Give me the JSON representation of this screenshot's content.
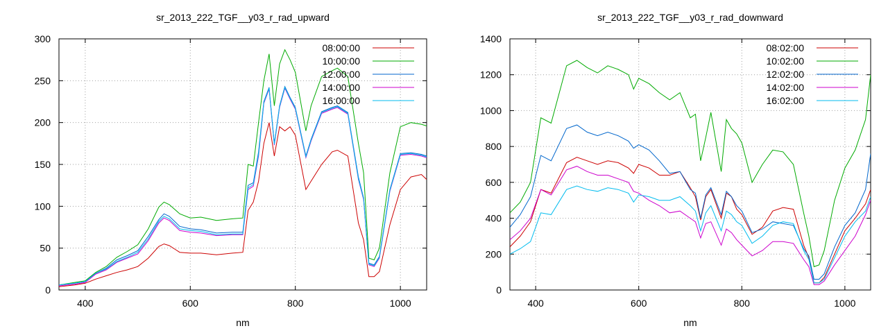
{
  "chart_data": [
    {
      "type": "line",
      "title": "sr_2013_222_TGF__y03_r_rad_upward",
      "xlabel": "nm",
      "ylabel": "",
      "xlim": [
        350,
        1050
      ],
      "ylim": [
        0,
        300
      ],
      "xticks": [
        400,
        600,
        800,
        1000
      ],
      "yticks": [
        0,
        50,
        100,
        150,
        200,
        250,
        300
      ],
      "grid": true,
      "legend": "top-right",
      "series": [
        {
          "name": "08:00:00",
          "color": "#cc0000",
          "x": [
            350,
            380,
            400,
            420,
            440,
            460,
            480,
            500,
            520,
            540,
            550,
            560,
            580,
            600,
            620,
            650,
            680,
            700,
            710,
            720,
            730,
            740,
            750,
            760,
            770,
            780,
            790,
            800,
            820,
            830,
            850,
            870,
            880,
            900,
            920,
            930,
            940,
            950,
            960,
            980,
            1000,
            1020,
            1040,
            1050
          ],
          "y": [
            4,
            6,
            8,
            13,
            17,
            21,
            24,
            28,
            38,
            52,
            55,
            53,
            45,
            44,
            44,
            42,
            44,
            45,
            95,
            105,
            130,
            175,
            200,
            160,
            195,
            190,
            195,
            185,
            120,
            130,
            150,
            165,
            167,
            160,
            80,
            60,
            16,
            16,
            22,
            78,
            120,
            135,
            138,
            132
          ]
        },
        {
          "name": "10:00:00",
          "color": "#00aa00",
          "x": [
            350,
            380,
            400,
            420,
            440,
            460,
            480,
            500,
            520,
            540,
            550,
            560,
            580,
            600,
            620,
            650,
            680,
            700,
            710,
            720,
            730,
            740,
            750,
            760,
            770,
            780,
            790,
            800,
            820,
            830,
            850,
            870,
            880,
            900,
            920,
            930,
            940,
            950,
            960,
            980,
            1000,
            1020,
            1040,
            1050
          ],
          "y": [
            6,
            9,
            11,
            21,
            28,
            39,
            46,
            54,
            73,
            99,
            105,
            102,
            91,
            86,
            87,
            83,
            85,
            86,
            150,
            148,
            200,
            250,
            282,
            220,
            270,
            287,
            275,
            260,
            190,
            220,
            255,
            262,
            265,
            255,
            175,
            140,
            38,
            36,
            50,
            140,
            195,
            200,
            198,
            196
          ]
        },
        {
          "name": "12:00:00",
          "color": "#0066cc",
          "x": [
            350,
            380,
            400,
            420,
            440,
            460,
            480,
            500,
            520,
            540,
            550,
            560,
            580,
            600,
            620,
            650,
            680,
            700,
            710,
            720,
            730,
            740,
            750,
            760,
            770,
            780,
            790,
            800,
            820,
            830,
            850,
            870,
            880,
            900,
            920,
            930,
            940,
            950,
            960,
            980,
            1000,
            1020,
            1040,
            1050
          ],
          "y": [
            6,
            8,
            10,
            20,
            26,
            36,
            41,
            47,
            64,
            84,
            91,
            88,
            76,
            73,
            72,
            68,
            69,
            69,
            125,
            128,
            165,
            225,
            242,
            175,
            220,
            243,
            230,
            218,
            160,
            180,
            213,
            218,
            220,
            212,
            135,
            110,
            32,
            30,
            40,
            120,
            163,
            164,
            162,
            160
          ]
        },
        {
          "name": "14:00:00",
          "color": "#cc00cc",
          "x": [
            350,
            380,
            400,
            420,
            440,
            460,
            480,
            500,
            520,
            540,
            550,
            560,
            580,
            600,
            620,
            650,
            680,
            700,
            710,
            720,
            730,
            740,
            750,
            760,
            770,
            780,
            790,
            800,
            820,
            830,
            850,
            870,
            880,
            900,
            920,
            930,
            940,
            950,
            960,
            980,
            1000,
            1020,
            1040,
            1050
          ],
          "y": [
            5,
            7,
            9,
            19,
            24,
            33,
            38,
            43,
            59,
            80,
            86,
            83,
            71,
            69,
            68,
            65,
            66,
            66,
            120,
            124,
            160,
            223,
            240,
            173,
            218,
            241,
            228,
            216,
            158,
            178,
            211,
            216,
            218,
            210,
            132,
            108,
            30,
            28,
            38,
            118,
            161,
            162,
            160,
            158
          ]
        },
        {
          "name": "16:00:00",
          "color": "#00bbee",
          "x": [
            350,
            380,
            400,
            420,
            440,
            460,
            480,
            500,
            520,
            540,
            550,
            560,
            580,
            600,
            620,
            650,
            680,
            700,
            710,
            720,
            730,
            740,
            750,
            760,
            770,
            780,
            790,
            800,
            820,
            830,
            850,
            870,
            880,
            900,
            920,
            930,
            940,
            950,
            960,
            980,
            1000,
            1020,
            1040,
            1050
          ],
          "y": [
            6,
            8,
            10,
            20,
            25,
            34,
            39,
            45,
            61,
            82,
            88,
            85,
            73,
            71,
            70,
            66,
            67,
            67,
            122,
            126,
            162,
            224,
            241,
            174,
            219,
            242,
            229,
            217,
            159,
            179,
            212,
            217,
            219,
            211,
            133,
            109,
            31,
            29,
            39,
            119,
            162,
            163,
            161,
            159
          ]
        }
      ]
    },
    {
      "type": "line",
      "title": "sr_2013_222_TGF__y03_r_rad_downward",
      "xlabel": "nm",
      "ylabel": "",
      "xlim": [
        350,
        1050
      ],
      "ylim": [
        0,
        1400
      ],
      "xticks": [
        400,
        600,
        800,
        1000
      ],
      "yticks": [
        0,
        200,
        400,
        600,
        800,
        1000,
        1200,
        1400
      ],
      "grid": true,
      "legend": "top-right",
      "series": [
        {
          "name": "08:02:00",
          "color": "#cc0000",
          "x": [
            350,
            370,
            390,
            410,
            430,
            460,
            480,
            500,
            520,
            540,
            560,
            580,
            590,
            600,
            620,
            640,
            660,
            680,
            700,
            710,
            720,
            730,
            740,
            760,
            770,
            780,
            790,
            800,
            820,
            840,
            860,
            880,
            900,
            920,
            930,
            940,
            950,
            960,
            980,
            1000,
            1020,
            1040,
            1050
          ],
          "y": [
            240,
            300,
            380,
            560,
            540,
            710,
            740,
            720,
            700,
            720,
            710,
            680,
            650,
            700,
            680,
            640,
            640,
            660,
            570,
            520,
            390,
            520,
            560,
            400,
            540,
            520,
            450,
            420,
            310,
            350,
            440,
            460,
            450,
            250,
            180,
            40,
            40,
            70,
            200,
            330,
            400,
            480,
            560
          ]
        },
        {
          "name": "10:02:00",
          "color": "#00aa00",
          "x": [
            350,
            370,
            390,
            410,
            430,
            460,
            480,
            500,
            520,
            540,
            560,
            580,
            590,
            600,
            620,
            640,
            660,
            680,
            700,
            710,
            720,
            730,
            740,
            760,
            770,
            780,
            790,
            800,
            820,
            840,
            860,
            880,
            900,
            920,
            930,
            940,
            950,
            960,
            980,
            1000,
            1020,
            1040,
            1050
          ],
          "y": [
            430,
            490,
            600,
            960,
            930,
            1250,
            1280,
            1240,
            1210,
            1250,
            1230,
            1200,
            1120,
            1180,
            1150,
            1100,
            1060,
            1100,
            960,
            980,
            720,
            850,
            990,
            660,
            950,
            900,
            870,
            820,
            600,
            700,
            780,
            770,
            700,
            430,
            300,
            130,
            140,
            220,
            500,
            680,
            780,
            950,
            1200
          ]
        },
        {
          "name": "12:02:00",
          "color": "#0066cc",
          "x": [
            350,
            370,
            390,
            410,
            430,
            460,
            480,
            500,
            520,
            540,
            560,
            580,
            590,
            600,
            620,
            640,
            660,
            680,
            700,
            710,
            720,
            730,
            740,
            760,
            770,
            780,
            790,
            800,
            820,
            840,
            860,
            880,
            900,
            920,
            930,
            940,
            950,
            960,
            980,
            1000,
            1020,
            1040,
            1050
          ],
          "y": [
            350,
            420,
            520,
            750,
            720,
            900,
            920,
            880,
            860,
            880,
            860,
            830,
            790,
            810,
            780,
            720,
            650,
            660,
            560,
            540,
            400,
            530,
            570,
            420,
            550,
            520,
            470,
            440,
            320,
            340,
            380,
            370,
            360,
            230,
            190,
            60,
            60,
            90,
            240,
            360,
            430,
            560,
            760
          ]
        },
        {
          "name": "14:02:00",
          "color": "#cc00cc",
          "x": [
            350,
            370,
            390,
            410,
            430,
            460,
            480,
            500,
            520,
            540,
            560,
            580,
            590,
            600,
            620,
            640,
            660,
            680,
            700,
            710,
            720,
            730,
            740,
            760,
            770,
            780,
            790,
            800,
            820,
            840,
            860,
            880,
            900,
            920,
            930,
            940,
            950,
            960,
            980,
            1000,
            1020,
            1040,
            1050
          ],
          "y": [
            280,
            330,
            400,
            560,
            530,
            670,
            690,
            660,
            640,
            640,
            620,
            600,
            550,
            540,
            500,
            470,
            430,
            440,
            400,
            380,
            290,
            370,
            380,
            250,
            340,
            320,
            280,
            250,
            190,
            220,
            270,
            270,
            260,
            170,
            130,
            30,
            30,
            50,
            140,
            220,
            300,
            420,
            500
          ]
        },
        {
          "name": "16:02:00",
          "color": "#00bbee",
          "x": [
            350,
            370,
            390,
            410,
            430,
            460,
            480,
            500,
            520,
            540,
            560,
            580,
            590,
            600,
            620,
            640,
            660,
            680,
            700,
            710,
            720,
            730,
            740,
            760,
            770,
            780,
            790,
            800,
            820,
            840,
            860,
            880,
            900,
            920,
            930,
            940,
            950,
            960,
            980,
            1000,
            1020,
            1040,
            1050
          ],
          "y": [
            200,
            230,
            270,
            430,
            420,
            560,
            580,
            560,
            550,
            570,
            560,
            540,
            490,
            530,
            520,
            500,
            500,
            520,
            470,
            440,
            330,
            430,
            470,
            330,
            440,
            420,
            380,
            360,
            260,
            300,
            360,
            380,
            370,
            220,
            170,
            40,
            40,
            60,
            180,
            300,
            380,
            440,
            520
          ]
        }
      ]
    }
  ]
}
